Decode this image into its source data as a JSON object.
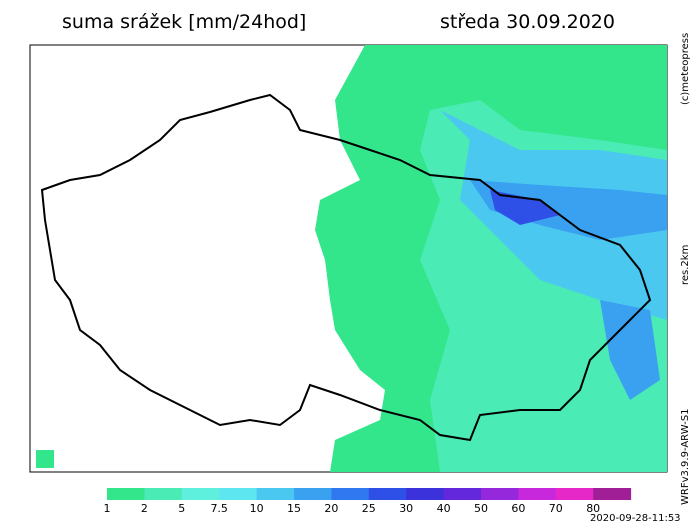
{
  "header": {
    "title": "suma srážek [mm/24hod]",
    "date": "středa 30.09.2020"
  },
  "side": {
    "copyright": "(c)meteopress",
    "resolution": "res.2km",
    "model": "WRFv3.9.9-ARW-S1"
  },
  "footer": {
    "timestamp": "2020-09-28-11:53"
  },
  "legend": {
    "levels": [
      1,
      2,
      5,
      7.5,
      10,
      15,
      20,
      25,
      30,
      40,
      50,
      60,
      70,
      80
    ],
    "colors": [
      "#33e68c",
      "#4aebb4",
      "#5ef0dc",
      "#5ee6f0",
      "#4bc8f0",
      "#3aa0f0",
      "#2f78f0",
      "#2f50e6",
      "#3c32dc",
      "#6428dc",
      "#9628dc",
      "#c828dc",
      "#e628c8",
      "#a01e96"
    ]
  }
}
